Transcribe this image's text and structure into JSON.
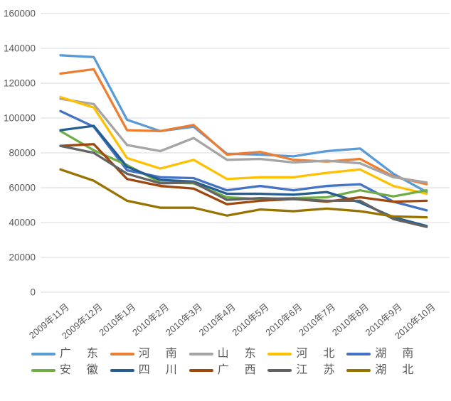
{
  "colors": {
    "background": "#ffffff",
    "gridline": "#d9d9d9",
    "axis_text": "#595959"
  },
  "chart_data": {
    "type": "line",
    "title": "",
    "xlabel": "",
    "ylabel": "",
    "ylim": [
      0,
      160000
    ],
    "ytick_step": 20000,
    "grid": true,
    "legend_position": "bottom",
    "legend_rows": [
      5,
      5
    ],
    "categories": [
      "2009年11月",
      "2009年12月",
      "2010年1月",
      "2010年2月",
      "2010年3月",
      "2010年4月",
      "2010年5月",
      "2010年6月",
      "2010年7月",
      "2010年8月",
      "2010年9月",
      "2010年10月"
    ],
    "series": [
      {
        "name": "广 东",
        "color": "#5B9BD5",
        "values": [
          136000,
          135000,
          99000,
          92500,
          95000,
          79500,
          79000,
          78000,
          81000,
          82500,
          68000,
          57500
        ]
      },
      {
        "name": "河 南",
        "color": "#ED7D31",
        "values": [
          125500,
          128000,
          93000,
          92500,
          96000,
          79000,
          80500,
          76000,
          75000,
          76500,
          66500,
          62000
        ]
      },
      {
        "name": "山 东",
        "color": "#A5A5A5",
        "values": [
          111000,
          108000,
          84500,
          81000,
          88500,
          76000,
          76500,
          74500,
          75500,
          74000,
          66000,
          63000
        ]
      },
      {
        "name": "河 北",
        "color": "#FFC000",
        "values": [
          112000,
          106000,
          77000,
          71000,
          76000,
          65000,
          66000,
          66000,
          68500,
          70500,
          61000,
          56500
        ]
      },
      {
        "name": "湖 南",
        "color": "#4472C4",
        "values": [
          104000,
          95000,
          70000,
          66000,
          65500,
          58500,
          61000,
          58500,
          61000,
          62000,
          52000,
          47000
        ]
      },
      {
        "name": "安 徽",
        "color": "#70AD47",
        "values": [
          92500,
          81500,
          73000,
          63000,
          62500,
          54500,
          53500,
          54000,
          54500,
          58500,
          55000,
          58500
        ]
      },
      {
        "name": "四 川",
        "color": "#255E91",
        "values": [
          93000,
          95500,
          72000,
          64500,
          63500,
          56500,
          56500,
          56000,
          57500,
          51500,
          43000,
          38000
        ]
      },
      {
        "name": "广 西",
        "color": "#9E480E",
        "values": [
          84000,
          85000,
          65000,
          61000,
          59500,
          50500,
          52500,
          53500,
          52000,
          54500,
          52000,
          52500
        ]
      },
      {
        "name": "江 苏",
        "color": "#636363",
        "values": [
          84000,
          80000,
          68000,
          62500,
          63000,
          53000,
          54000,
          53500,
          52500,
          52500,
          42000,
          37500
        ]
      },
      {
        "name": "湖 北",
        "color": "#997300",
        "values": [
          70500,
          64000,
          52500,
          48500,
          48500,
          44000,
          47500,
          46500,
          48000,
          46500,
          43500,
          43000
        ]
      }
    ]
  }
}
